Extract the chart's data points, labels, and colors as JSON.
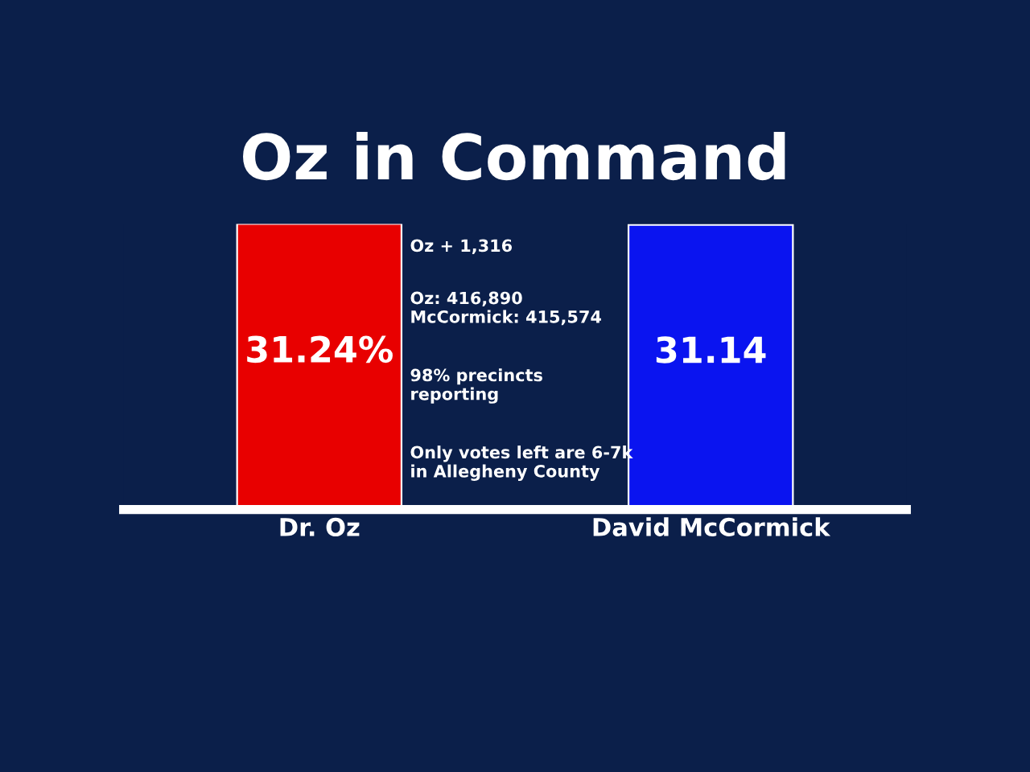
{
  "chart_data": {
    "type": "bar",
    "title": "Oz in Command",
    "categories": [
      "Dr. Oz",
      "David McCormick"
    ],
    "values": [
      31.24,
      31.14
    ],
    "colors": [
      "#e80000",
      "#0a14f0"
    ],
    "value_labels": [
      "31.24%",
      "31.14"
    ],
    "annotations": [
      "Oz + 1,316",
      "Oz: 416,890\nMcCormick: 415,574",
      "98% precincts\nreporting",
      "Only votes left are 6-7k\nin Allegheny County"
    ],
    "tick_labels": "x",
    "grid": false,
    "legend": false
  }
}
